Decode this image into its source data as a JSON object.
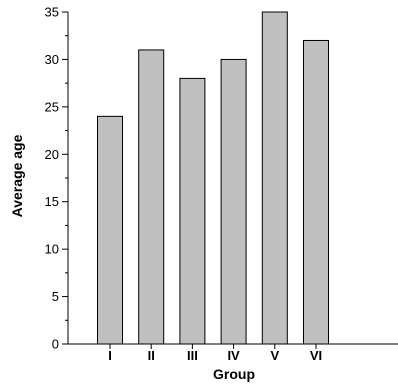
{
  "chart_data": {
    "type": "bar",
    "title": "",
    "xlabel": "Group",
    "ylabel": "Average age",
    "categories": [
      "I",
      "II",
      "III",
      "IV",
      "V",
      "VI"
    ],
    "values": [
      24,
      31,
      28,
      30,
      35,
      32
    ],
    "ylim": [
      0,
      35
    ],
    "yticks": [
      "0",
      "5",
      "10",
      "15",
      "20",
      "25",
      "30",
      "35"
    ],
    "grid": false,
    "legend": "none",
    "bar_color": "#c0c0c0",
    "bar_edge_color": "#000000"
  }
}
